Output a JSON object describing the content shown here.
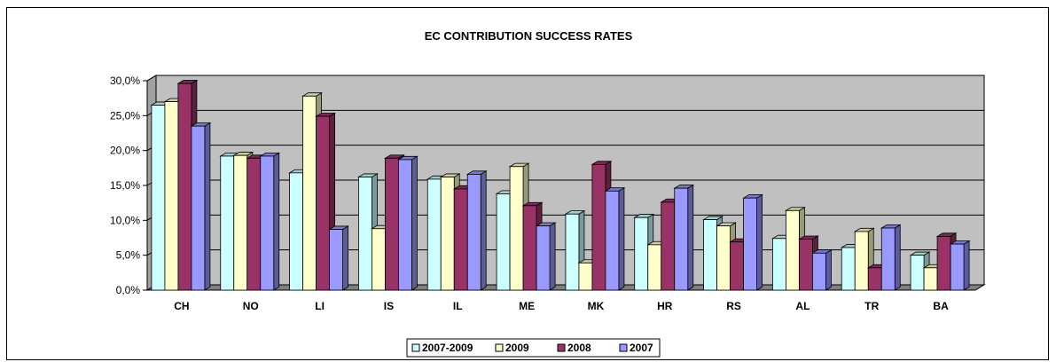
{
  "chart_data": {
    "type": "bar",
    "title": "EC CONTRIBUTION SUCCESS RATES",
    "xlabel": "",
    "ylabel": "",
    "ylim": [
      0,
      30
    ],
    "yticks": [
      "0,0%",
      "5,0%",
      "10,0%",
      "15,0%",
      "20,0%",
      "25,0%",
      "30,0%"
    ],
    "grid": true,
    "three_d": true,
    "legend_position": "bottom",
    "categories": [
      "CH",
      "NO",
      "LI",
      "IS",
      "IL",
      "ME",
      "MK",
      "HR",
      "RS",
      "AL",
      "TR",
      "BA"
    ],
    "series": [
      {
        "name": "2007-2009",
        "color": "#ccffff",
        "values": [
          26.5,
          19.2,
          16.8,
          16.2,
          15.9,
          13.8,
          10.9,
          10.4,
          10.1,
          7.4,
          6.1,
          5.0
        ]
      },
      {
        "name": "2009",
        "color": "#ffffcc",
        "values": [
          27.0,
          19.3,
          27.8,
          8.8,
          16.2,
          17.7,
          3.9,
          6.5,
          9.2,
          11.4,
          8.4,
          3.2
        ]
      },
      {
        "name": "2008",
        "color": "#993366",
        "values": [
          29.6,
          18.9,
          24.9,
          18.9,
          14.5,
          12.1,
          18.0,
          12.6,
          6.9,
          7.3,
          3.2,
          7.7
        ]
      },
      {
        "name": "2007",
        "color": "#9999ff",
        "values": [
          23.5,
          19.2,
          8.7,
          18.7,
          16.6,
          9.2,
          14.2,
          14.6,
          13.2,
          5.3,
          8.9,
          6.6
        ]
      }
    ]
  }
}
